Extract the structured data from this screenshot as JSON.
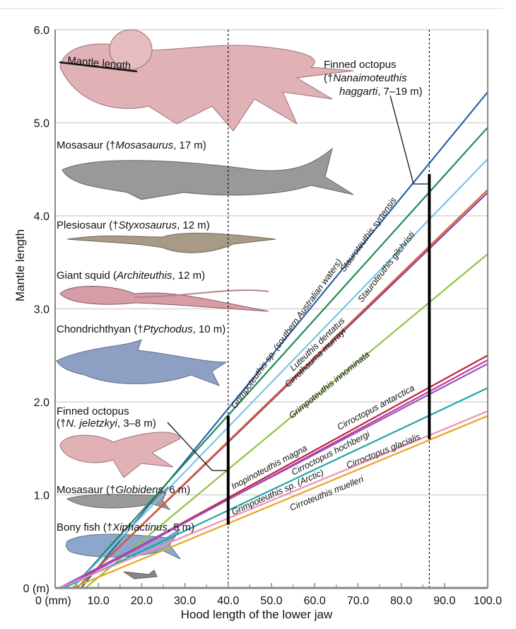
{
  "chart_data": {
    "type": "line",
    "xlabel": "Hood length of the lower jaw",
    "ylabel": "Mantle length",
    "xlim": [
      0,
      100
    ],
    "ylim": [
      0,
      6
    ],
    "x_ticks": [
      "0 (mm)",
      "10.0",
      "20.0",
      "30.0",
      "40.0",
      "50.0",
      "60.0",
      "70.0",
      "80.0",
      "90.0",
      "100.0"
    ],
    "y_ticks": [
      "0 (m)",
      "1.0",
      "2.0",
      "3.0",
      "4.0",
      "5.0",
      "6.0"
    ],
    "grid": true,
    "series": [
      {
        "name": "Stauroteuthis syrtensis",
        "color": "#2a63a8",
        "x": [
          6,
          100
        ],
        "y": [
          0,
          5.33
        ]
      },
      {
        "name": "Grimpoteuthis sp. (southern Australian waters)",
        "color": "#1e8a5a",
        "x": [
          4,
          100
        ],
        "y": [
          0,
          4.95
        ]
      },
      {
        "name": "Stauroteuthis gilchristi",
        "color": "#7cc3e6",
        "x": [
          4,
          100
        ],
        "y": [
          0,
          4.61
        ]
      },
      {
        "name": "Luteuthis dentatus",
        "color": "#8c3f9e",
        "x": [
          5,
          100
        ],
        "y": [
          0,
          4.25
        ]
      },
      {
        "name": "Cirrothauma murrayi",
        "color": "#d9602b",
        "x": [
          5,
          100
        ],
        "y": [
          0,
          4.28
        ]
      },
      {
        "name": "Grimpoteuthis innominata",
        "color": "#8cc63f",
        "x": [
          7,
          100
        ],
        "y": [
          0,
          3.59
        ]
      },
      {
        "name": "Cirroctopus antarctica",
        "color": "#c4203a",
        "x": [
          2,
          100
        ],
        "y": [
          0,
          2.5
        ]
      },
      {
        "name": "Cirroctopus hochbergi",
        "color": "#b43fa8",
        "x": [
          2,
          100
        ],
        "y": [
          0,
          2.45
        ]
      },
      {
        "name": "Inopinoteuthis magna",
        "color": "#9b4fb8",
        "x": [
          1,
          100
        ],
        "y": [
          0,
          2.41
        ]
      },
      {
        "name": "Grimpoteuthis sp. (Arctic)",
        "color": "#1ea5a5",
        "x": [
          2,
          100
        ],
        "y": [
          0,
          2.15
        ]
      },
      {
        "name": "Cirroctopus glacialis",
        "color": "#ee8fb4",
        "x": [
          1,
          100
        ],
        "y": [
          0,
          1.9
        ]
      },
      {
        "name": "Cirroteuthis muelleri",
        "color": "#e8a41c",
        "x": [
          4,
          100
        ],
        "y": [
          0,
          1.85
        ]
      }
    ],
    "reference_lines": [
      {
        "x": 40,
        "range": [
          0.68,
          1.85
        ]
      },
      {
        "x": 86.5,
        "range": [
          1.6,
          4.45
        ]
      }
    ]
  },
  "annotations": {
    "mantle_length": "Mantle length",
    "nanaimo": {
      "line1": "Finned octopus",
      "line2_pre": "(†",
      "line2_it": "Nanaimoteuthis",
      "line3_it": "haggarti",
      "line3_post": ", 7–19 m)"
    },
    "mosasaurus": {
      "pre": "Mosasaur (†",
      "it": "Mosasaurus",
      "post": ", 17 m)"
    },
    "styxosaurus": {
      "pre": "Plesiosaur (†",
      "it": "Styxosaurus",
      "post": ", 12 m)"
    },
    "architeuthis": {
      "pre": "Giant squid (",
      "it": "Architeuthis",
      "post": ", 12 m)"
    },
    "ptychodus": {
      "pre": "Chondrichthyan (†",
      "it": "Ptychodus",
      "post": ", 10 m)"
    },
    "jeletzkyi": {
      "line1": "Finned octopus",
      "pre": "(†",
      "it": "N. jeletzkyi",
      "post": ", 3–8 m)"
    },
    "globidens": {
      "pre": "Mosasaur (†",
      "it": "Globidens",
      "post": ", 6 m)"
    },
    "xiphactinus": {
      "pre": "Bony fish (†",
      "it": "Xiphactinus",
      "post": ", 5 m)"
    }
  }
}
